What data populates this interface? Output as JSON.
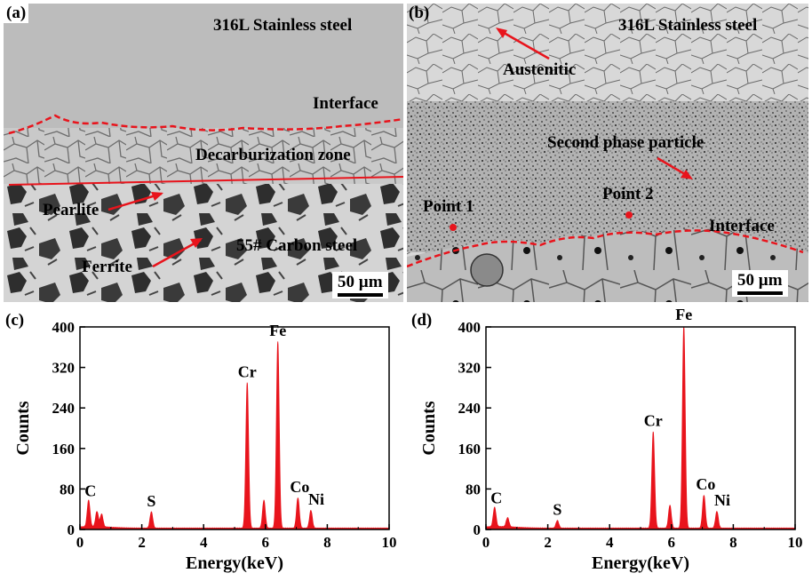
{
  "figure": {
    "panel_a": {
      "tag": "(a)",
      "material_top": "316L Stainless steel",
      "interface": "Interface",
      "decarb": "Decarburization zone",
      "pearlite": "Pearlite",
      "ferrite": "Ferrite",
      "material_bottom": "55# Carbon steel",
      "scale": "50 µm"
    },
    "panel_b": {
      "tag": "(b)",
      "material_top": "316L Stainless steel",
      "austenitic": "Austenitic",
      "second_phase": "Second phase particle",
      "point1": "Point 1",
      "point2": "Point 2",
      "interface": "Interface",
      "scale": "50 µm"
    },
    "colors": {
      "annotation": "#e8141c",
      "spectrum": "#e8141c"
    }
  },
  "chart_data": [
    {
      "type": "line",
      "panel_tag": "(c)",
      "xlabel": "Energy(keV)",
      "ylabel": "Counts",
      "xlim": [
        0,
        10
      ],
      "ylim": [
        0,
        400
      ],
      "xticks": [
        0,
        2,
        4,
        6,
        8,
        10
      ],
      "yticks": [
        0,
        80,
        160,
        240,
        320,
        400
      ],
      "peaks": [
        {
          "label": "C",
          "energy": 0.28,
          "counts": 52
        },
        {
          "label": "",
          "energy": 0.55,
          "counts": 30
        },
        {
          "label": "",
          "energy": 0.7,
          "counts": 25
        },
        {
          "label": "S",
          "energy": 2.31,
          "counts": 32
        },
        {
          "label": "Cr",
          "energy": 5.41,
          "counts": 287
        },
        {
          "label": "",
          "energy": 5.95,
          "counts": 55
        },
        {
          "label": "Fe",
          "energy": 6.4,
          "counts": 368
        },
        {
          "label": "Co",
          "energy": 7.05,
          "counts": 60
        },
        {
          "label": "Ni",
          "energy": 7.47,
          "counts": 35
        }
      ]
    },
    {
      "type": "line",
      "panel_tag": "(d)",
      "xlabel": "Energy(keV)",
      "ylabel": "Counts",
      "xlim": [
        0,
        10
      ],
      "ylim": [
        0,
        400
      ],
      "xticks": [
        0,
        2,
        4,
        6,
        8,
        10
      ],
      "yticks": [
        0,
        80,
        160,
        240,
        320,
        400
      ],
      "peaks": [
        {
          "label": "C",
          "energy": 0.28,
          "counts": 38
        },
        {
          "label": "",
          "energy": 0.7,
          "counts": 18
        },
        {
          "label": "S",
          "energy": 2.31,
          "counts": 15
        },
        {
          "label": "Cr",
          "energy": 5.41,
          "counts": 190
        },
        {
          "label": "",
          "energy": 5.95,
          "counts": 45
        },
        {
          "label": "Fe",
          "energy": 6.4,
          "counts": 400
        },
        {
          "label": "Co",
          "energy": 7.05,
          "counts": 65
        },
        {
          "label": "Ni",
          "energy": 7.47,
          "counts": 33
        }
      ]
    }
  ]
}
